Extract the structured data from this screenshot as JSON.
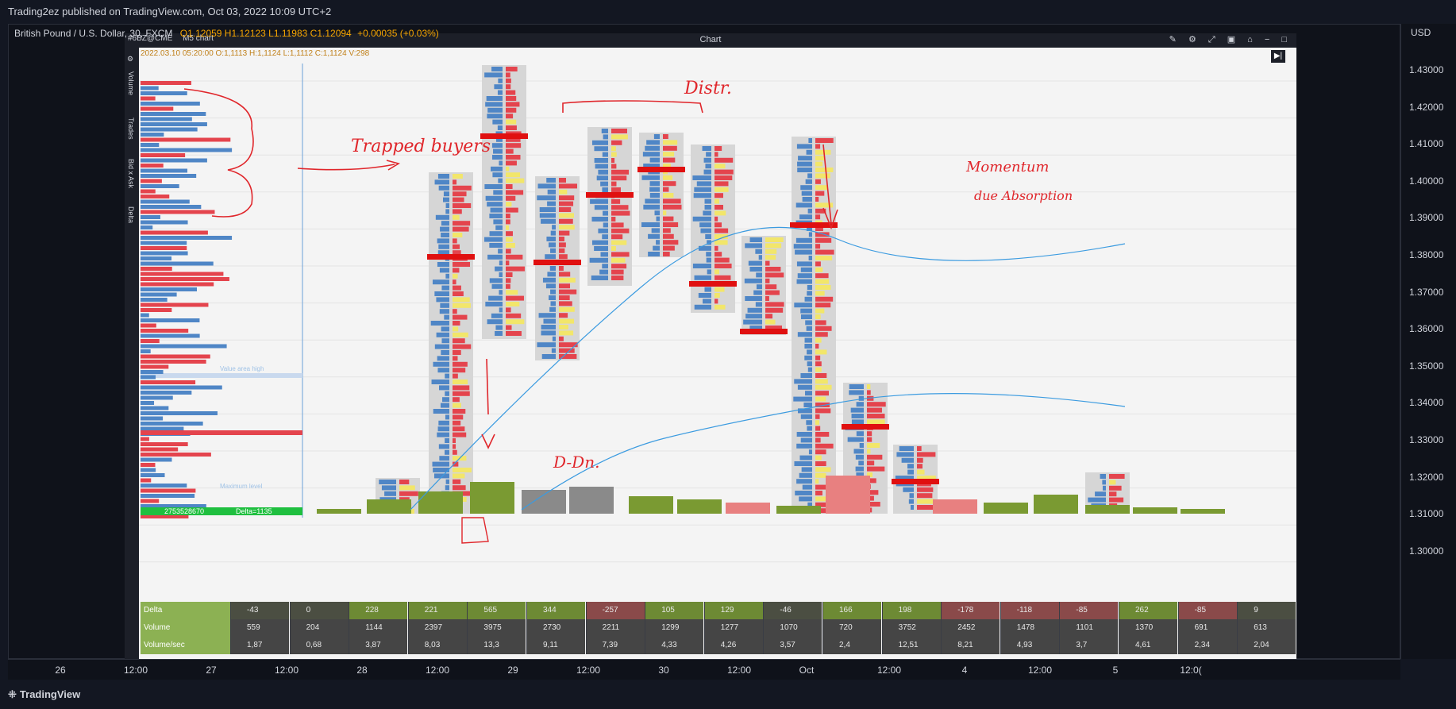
{
  "banner": {
    "text": "Trading2ez published on TradingView.com, Oct 03, 2022 10:09 UTC+2"
  },
  "symbol": {
    "name": "British Pound / U.S. Dollar, 30, FXCM",
    "ohlc": "O1.12059  H1.12123  L1.11983  C1.12094",
    "change": "+0.00035 (+0.03%)"
  },
  "price_axis": {
    "currency": "USD",
    "ticks": [
      "1.43000",
      "1.42000",
      "1.41000",
      "1.40000",
      "1.39000",
      "1.38000",
      "1.37000",
      "1.36000",
      "1.35000",
      "1.34000",
      "1.33000",
      "1.32000",
      "1.31000",
      "1.30000"
    ]
  },
  "time_axis": {
    "ticks": [
      "26",
      "12:00",
      "27",
      "12:00",
      "28",
      "12:00",
      "29",
      "12:00",
      "30",
      "12:00",
      "Oct",
      "12:00",
      "4",
      "12:00",
      "5",
      "12:0("
    ]
  },
  "inner_chart": {
    "title": "Chart",
    "toolbar": [
      "#6BZ@CME",
      "M5 chart"
    ],
    "info": "2022.03.10 05:20:00 O:1,1113 H:1,1124 L:1,1112 C:1,1124 V:298",
    "side_tabs": [
      "Volume",
      "Trades",
      "Bid x Ask",
      "Delta"
    ],
    "profile_labels": {
      "value_area_high": "Value area high",
      "maximum_level": "Maximum level",
      "total": "2753528670",
      "delta": "Delta=1135"
    },
    "stats": {
      "rows": [
        {
          "label": "Delta",
          "values": [
            "-43",
            "0",
            "228",
            "221",
            "565",
            "344",
            "-257",
            "105",
            "129",
            "-46",
            "166",
            "198",
            "-178",
            "-118",
            "-85",
            "262",
            "-85",
            "9"
          ]
        },
        {
          "label": "Volume",
          "values": [
            "559",
            "204",
            "1144",
            "2397",
            "3975",
            "2730",
            "2211",
            "1299",
            "1277",
            "1070",
            "720",
            "3752",
            "2452",
            "1478",
            "1101",
            "1370",
            "691",
            "613"
          ]
        },
        {
          "label": "Volume/sec",
          "values": [
            "1,87",
            "0,68",
            "3,87",
            "8,03",
            "13,3",
            "9,11",
            "7,39",
            "4,33",
            "4,26",
            "3,57",
            "2,4",
            "12,51",
            "8,21",
            "4,93",
            "3,7",
            "4,61",
            "2,34",
            "2,04"
          ]
        }
      ]
    }
  },
  "annotations": {
    "trapped": "Trapped buyers",
    "distr": "Distr.",
    "momentum1": "Momentum",
    "momentum2": "due Absorption",
    "ddn": "D-Dn."
  },
  "footer": {
    "logo": "TradingView"
  },
  "colors": {
    "bid": "#4f86c6",
    "ask": "#e4444d",
    "volume_bar": "#7a9a32",
    "poc": "#e01010",
    "vwap": "#3b9be0",
    "annotation": "#e0262b"
  }
}
